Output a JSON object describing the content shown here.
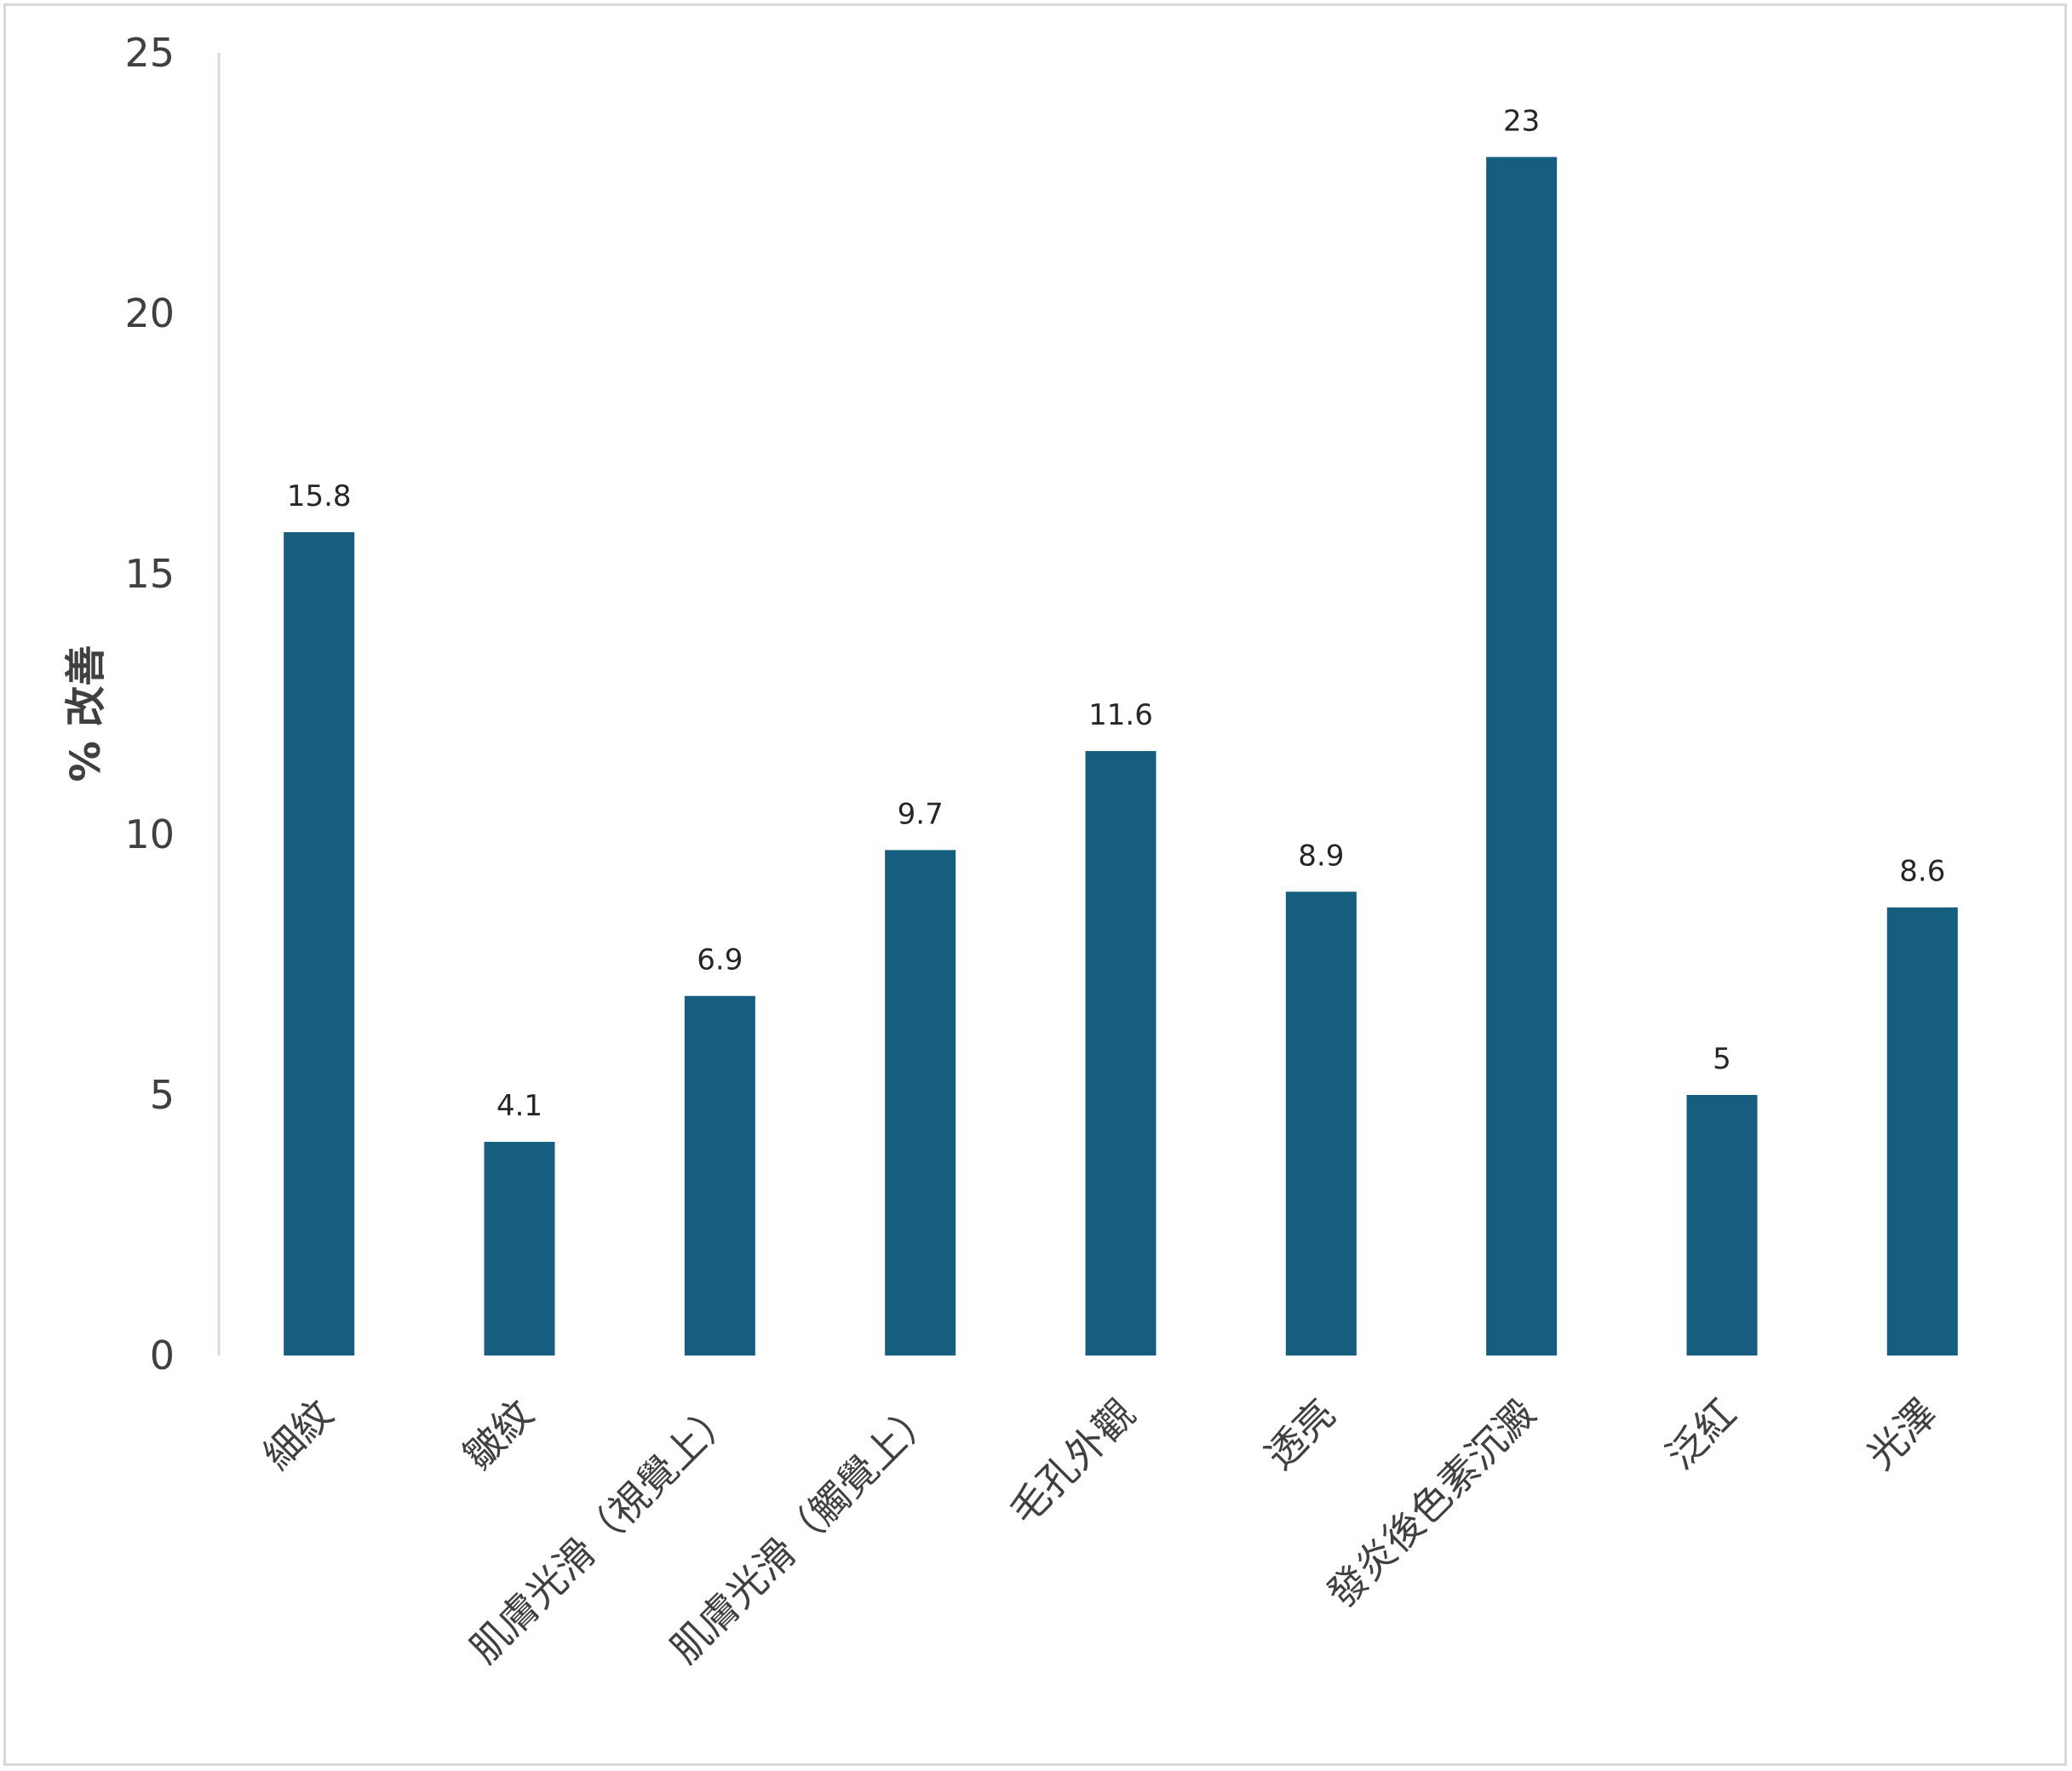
{
  "chart_data": {
    "type": "bar",
    "title": "",
    "xlabel": "",
    "ylabel": "% 改善",
    "categories": [
      "細紋",
      "皺紋",
      "肌膚光滑（視覺上）",
      "肌膚光滑（觸覺上）",
      "毛孔外觀",
      "透亮",
      "發炎後色素沉澱",
      "泛紅",
      "光澤"
    ],
    "values": [
      15.8,
      4.1,
      6.9,
      9.7,
      11.6,
      8.9,
      23,
      5,
      8.6
    ],
    "data_labels": [
      "15.8",
      "4.1",
      "6.9",
      "9.7",
      "11.6",
      "8.9",
      "23",
      "5",
      "8.6"
    ],
    "ylim": [
      0,
      25
    ],
    "yticks": [
      0,
      5,
      10,
      15,
      20,
      25
    ],
    "grid": false,
    "legend": "none",
    "colors": {
      "bar": "#155e80",
      "axis": "#d9d9d9",
      "tick_text": "#404040",
      "label_text": "#262626"
    }
  }
}
